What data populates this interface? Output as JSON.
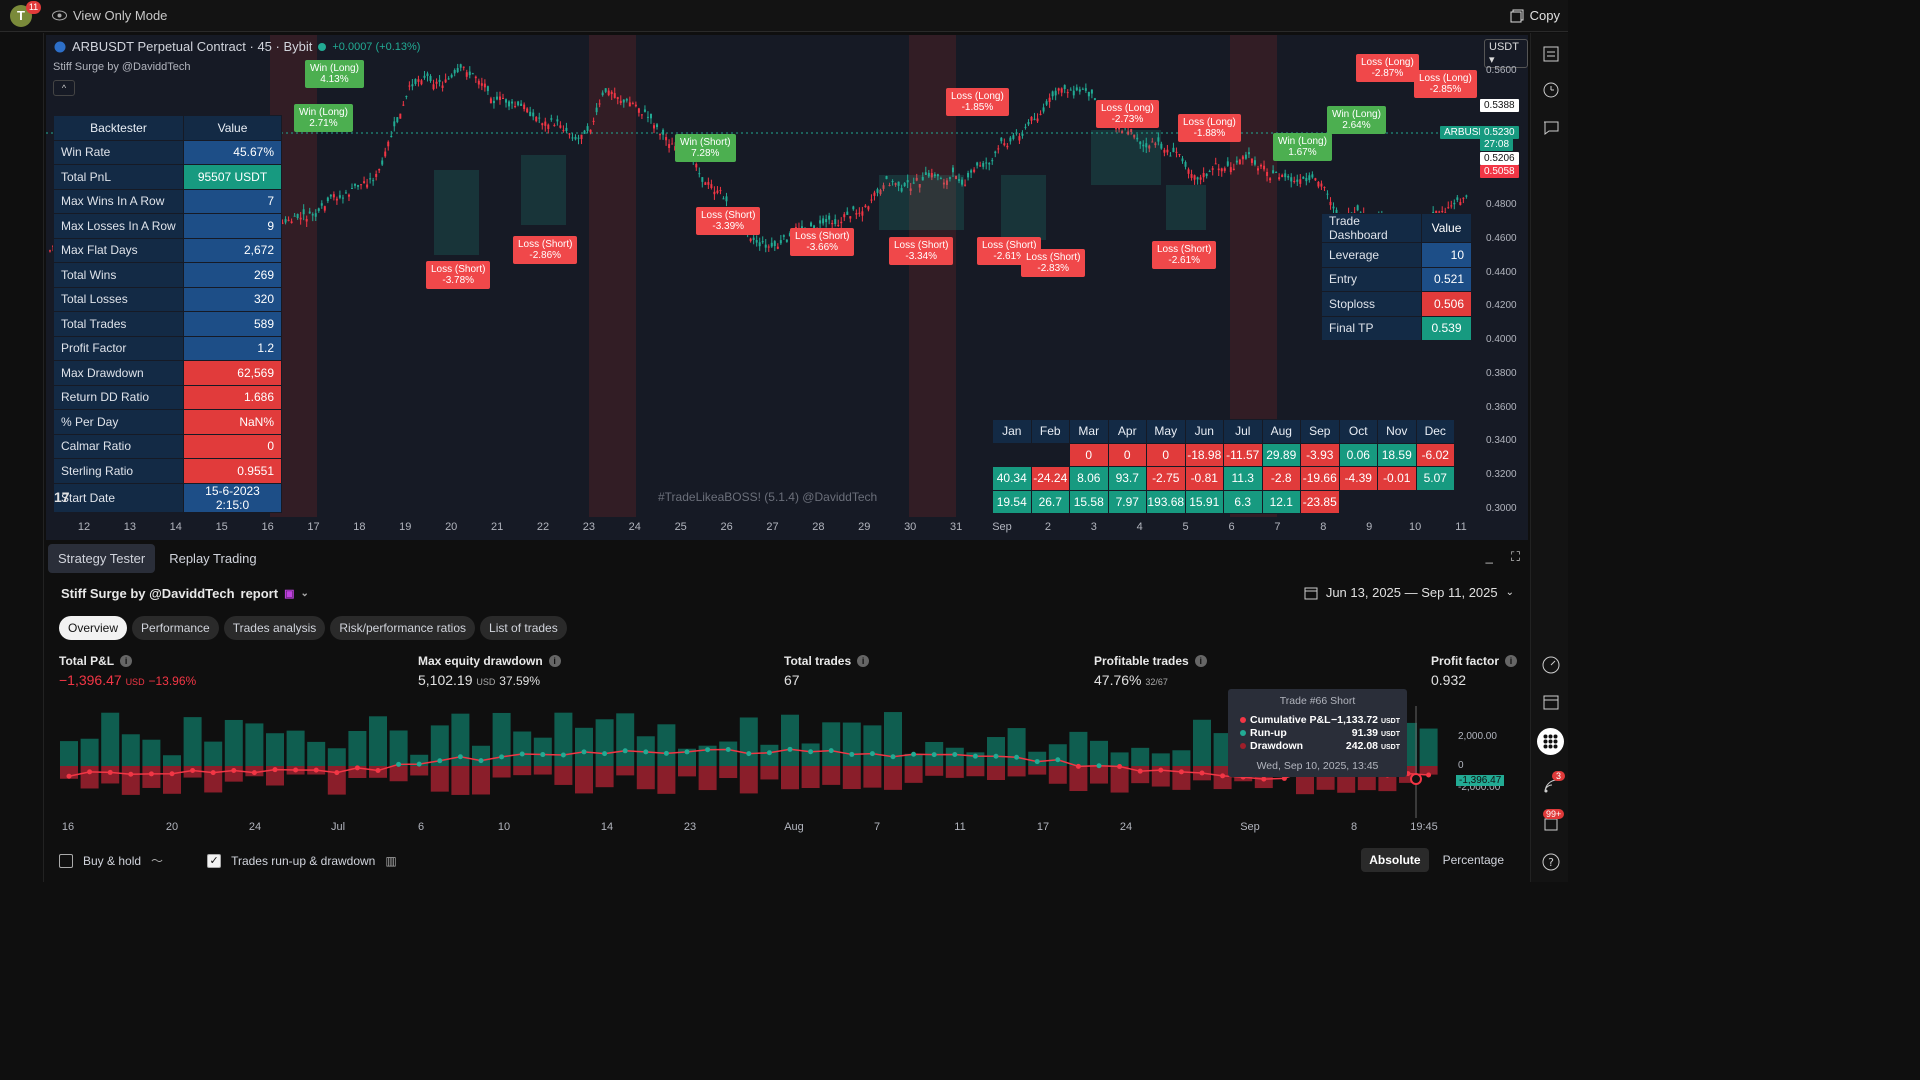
{
  "topbar": {
    "avatar": "T",
    "avatar_badge": "11",
    "view_mode": "View Only Mode",
    "copy": "Copy"
  },
  "chart": {
    "title": "ARBUSDT Perpetual Contract · 45 · Bybit",
    "change": "+0.0007 (+0.13%)",
    "indicator": "Stiff Surge by @DaviddTech",
    "currency": "USDT",
    "watermark": "#TradeLikeaBOSS! (5.1.4) @DaviddTech",
    "y_labels": [
      "0.5600",
      "0.4800",
      "0.4600",
      "0.4400",
      "0.4200",
      "0.4000",
      "0.3800",
      "0.3600",
      "0.3400",
      "0.3200",
      "0.3000"
    ],
    "price_tags": {
      "a": "0.5388",
      "sym": "ARBUSDT.P",
      "b": "0.5230",
      "countdown": "27:08",
      "c": "0.5206",
      "d": "0.5058"
    },
    "x_labels": [
      "12",
      "13",
      "14",
      "15",
      "16",
      "17",
      "18",
      "19",
      "20",
      "21",
      "22",
      "23",
      "24",
      "25",
      "26",
      "27",
      "28",
      "29",
      "30",
      "31",
      "Sep",
      "2",
      "3",
      "4",
      "5",
      "6",
      "7",
      "8",
      "9",
      "10",
      "11"
    ]
  },
  "backtester": {
    "headers": [
      "Backtester",
      "Value"
    ],
    "rows": [
      {
        "k": "Win Rate",
        "v": "45.67%"
      },
      {
        "k": "Total PnL",
        "v": "95507 USDT"
      },
      {
        "k": "Max Wins In A Row",
        "v": "7"
      },
      {
        "k": "Max Losses In A Row",
        "v": "9"
      },
      {
        "k": "Max Flat Days",
        "v": "2,672"
      },
      {
        "k": "Total Wins",
        "v": "269"
      },
      {
        "k": "Total Losses",
        "v": "320"
      },
      {
        "k": "Total Trades",
        "v": "589"
      },
      {
        "k": "Profit Factor",
        "v": "1.2"
      },
      {
        "k": "Max Drawdown",
        "v": "62,569"
      },
      {
        "k": "Return DD Ratio",
        "v": "1.686"
      },
      {
        "k": "% Per Day",
        "v": "NaN%"
      },
      {
        "k": "Calmar Ratio",
        "v": "0"
      },
      {
        "k": "Sterling Ratio",
        "v": "0.9551"
      },
      {
        "k": "Start Date",
        "v": "15-6-2023 2:15:0"
      }
    ]
  },
  "trade_dashboard": {
    "headers": [
      "Trade Dashboard",
      "Value"
    ],
    "rows": [
      {
        "k": "Leverage",
        "v": "10"
      },
      {
        "k": "Entry",
        "v": "0.521"
      },
      {
        "k": "Stoploss",
        "v": "0.506"
      },
      {
        "k": "Final TP",
        "v": "0.539"
      }
    ]
  },
  "monthly": {
    "months": [
      "Jan",
      "Feb",
      "Mar",
      "Apr",
      "May",
      "Jun",
      "Jul",
      "Aug",
      "Sep",
      "Oct",
      "Nov",
      "Dec"
    ],
    "rows": [
      [
        "",
        "",
        "0",
        "0",
        "0",
        "-18.98",
        "-11.57",
        "29.89",
        "-3.93",
        "0.06",
        "18.59",
        "-6.02"
      ],
      [
        "40.34",
        "-24.24",
        "8.06",
        "93.7",
        "-2.75",
        "-0.81",
        "11.3",
        "-2.8",
        "-19.66",
        "-4.39",
        "-0.01",
        "5.07"
      ],
      [
        "19.54",
        "26.7",
        "15.58",
        "7.97",
        "193.68",
        "15.91",
        "6.3",
        "12.1",
        "-23.85",
        "",
        "",
        ""
      ]
    ]
  },
  "trade_labels": [
    {
      "t": "Win (Long)",
      "p": "4.13%"
    },
    {
      "t": "Win (Long)",
      "p": "2.71%"
    },
    {
      "t": "Win (Short)",
      "p": "7.28%"
    },
    {
      "t": "Loss (Short)",
      "p": "-3.78%"
    },
    {
      "t": "Loss (Short)",
      "p": "-2.86%"
    },
    {
      "t": "Loss (Short)",
      "p": "-3.39%"
    },
    {
      "t": "Loss (Long)",
      "p": "-1.85%"
    },
    {
      "t": "Loss (Short)",
      "p": "-3.66%"
    },
    {
      "t": "Loss (Short)",
      "p": "-3.34%"
    },
    {
      "t": "Loss (Short)",
      "p": "-2.61%"
    },
    {
      "t": "Loss (Short)",
      "p": "-2.83%"
    },
    {
      "t": "Loss (Long)",
      "p": "-2.73%"
    },
    {
      "t": "Loss (Long)",
      "p": "-1.88%"
    },
    {
      "t": "Loss (Short)",
      "p": "-2.61%"
    },
    {
      "t": "Win (Long)",
      "p": "1.67%"
    },
    {
      "t": "Win (Long)",
      "p": "2.64%"
    },
    {
      "t": "Loss (Long)",
      "p": "-2.87%"
    },
    {
      "t": "Loss (Long)",
      "p": "-2.85%"
    }
  ],
  "panel": {
    "tabs": [
      "Strategy Tester",
      "Replay Trading"
    ],
    "report_title": "Stiff Surge by @DaviddTech",
    "report_word": "report",
    "date_range": "Jun 13, 2025 — Sep 11, 2025",
    "subtabs": [
      "Overview",
      "Performance",
      "Trades analysis",
      "Risk/performance ratios",
      "List of trades"
    ],
    "metrics": [
      {
        "k": "Total P&L",
        "v": "−1,396.47",
        "u": "USD",
        "x": "−13.96%"
      },
      {
        "k": "Max equity drawdown",
        "v": "5,102.19",
        "u": "USD",
        "x": "37.59%"
      },
      {
        "k": "Total trades",
        "v": "67",
        "u": "",
        "x": ""
      },
      {
        "k": "Profitable trades",
        "v": "47.76%",
        "u": "32/67",
        "x": ""
      },
      {
        "k": "Profit factor",
        "v": "0.932",
        "u": "",
        "x": ""
      }
    ],
    "tooltip": {
      "title": "Trade #66 Short",
      "rows": [
        {
          "k": "Cumulative P&L",
          "v": "−1,133.72",
          "u": "USDT",
          "c": "#f23645"
        },
        {
          "k": "Run-up",
          "v": "91.39",
          "u": "USDT",
          "c": "#22ab94"
        },
        {
          "k": "Drawdown",
          "v": "242.08",
          "u": "USDT",
          "c": "#f23645"
        }
      ],
      "time": "Wed, Sep 10, 2025, 13:45"
    },
    "eq_y": [
      "2,000.00",
      "0",
      "-2,000.00"
    ],
    "eq_last": "-1,396.47",
    "eq_x": [
      "16",
      "20",
      "24",
      "Jul",
      "6",
      "10",
      "14",
      "23",
      "Aug",
      "7",
      "11",
      "17",
      "24",
      "Sep",
      "8",
      "19:45"
    ],
    "buyhold": "Buy & hold",
    "runup": "Trades run-up & drawdown",
    "absolute": "Absolute",
    "percentage": "Percentage"
  },
  "rightbar": {
    "badge_alerts": "3",
    "badge_notes": "99+"
  },
  "colors": {
    "bg": "#161a25",
    "up": "#22ab94",
    "down": "#f23645",
    "table_blue": "#1d4e87"
  }
}
